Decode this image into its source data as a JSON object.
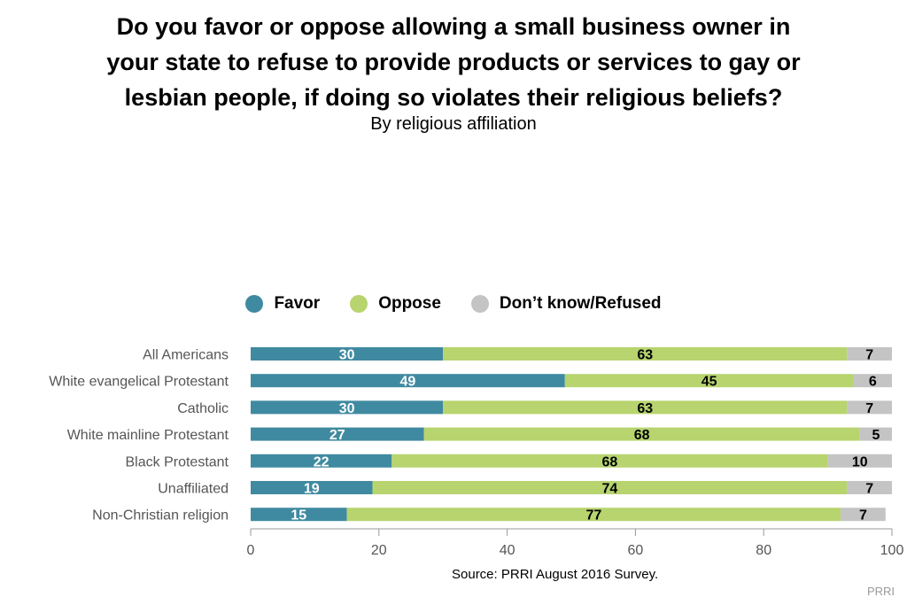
{
  "title_lines": [
    "Do you favor or oppose allowing a small business owner in",
    "your state to refuse to provide products or services to gay or",
    "lesbian people, if doing so violates their religious beliefs?"
  ],
  "subtitle": "By religious affiliation",
  "source": "Source: PRRI August 2016 Survey.",
  "brand": "PRRI",
  "chart_data": {
    "type": "bar",
    "orientation": "horizontal",
    "stacked": true,
    "title": "Do you favor or oppose allowing a small business owner in your state to refuse to provide products or services to gay or lesbian people, if doing so violates their religious beliefs?",
    "subtitle": "By religious affiliation",
    "categories": [
      "All Americans",
      "White evangelical Protestant",
      "Catholic",
      "White mainline Protestant",
      "Black Protestant",
      "Unaffiliated",
      "Non-Christian religion"
    ],
    "series": [
      {
        "name": "Favor",
        "color": "#3f8aa0",
        "label_color": "#ffffff",
        "values": [
          30,
          49,
          30,
          27,
          22,
          19,
          15
        ]
      },
      {
        "name": "Oppose",
        "color": "#b7d46f",
        "label_color": "#000000",
        "values": [
          63,
          45,
          63,
          68,
          68,
          74,
          77
        ]
      },
      {
        "name": "Don’t know/Refused",
        "color": "#c4c4c4",
        "label_color": "#000000",
        "values": [
          7,
          6,
          7,
          5,
          10,
          7,
          7
        ]
      }
    ],
    "xlim": [
      0,
      100
    ],
    "xticks": [
      0,
      20,
      40,
      60,
      80,
      100
    ],
    "legend_position": "top-center",
    "grid": false
  }
}
